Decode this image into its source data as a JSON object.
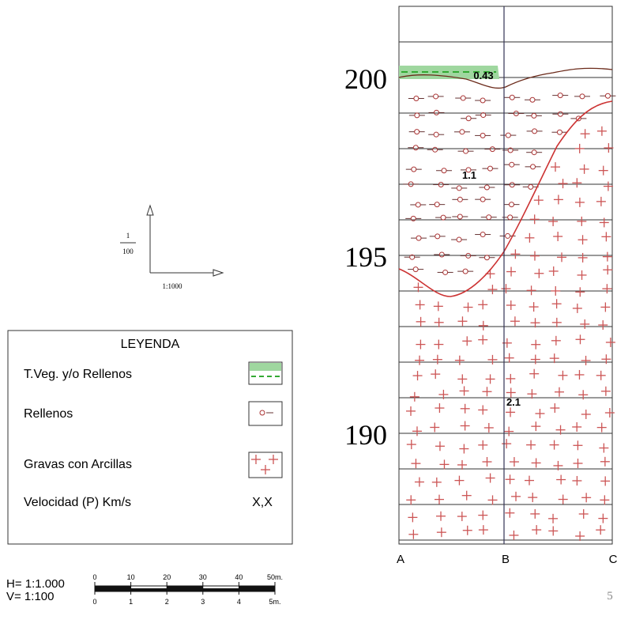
{
  "profile": {
    "elevations": [
      "200",
      "195",
      "190"
    ],
    "velocities": [
      "0.43",
      "1.1",
      "2.1"
    ],
    "points": [
      "A",
      "B",
      "C"
    ]
  },
  "axes_sketch": {
    "vertical_num": "1",
    "vertical_den": "100",
    "horizontal": "1:1000"
  },
  "legend": {
    "title": "LEYENDA",
    "items": [
      {
        "label": "T.Veg. y/o Rellenos"
      },
      {
        "label": "Rellenos"
      },
      {
        "label": "Gravas con Arcillas"
      },
      {
        "label": "Velocidad (P) Km/s",
        "symbol": "X,X"
      }
    ]
  },
  "scale": {
    "horizontal": "H= 1:1.000",
    "vertical": "V= 1:100",
    "top_ticks": [
      "0",
      "10",
      "20",
      "30",
      "40",
      "50m."
    ],
    "bottom_ticks": [
      "0",
      "1",
      "2",
      "3",
      "4",
      "5m."
    ]
  },
  "page_number": "5"
}
